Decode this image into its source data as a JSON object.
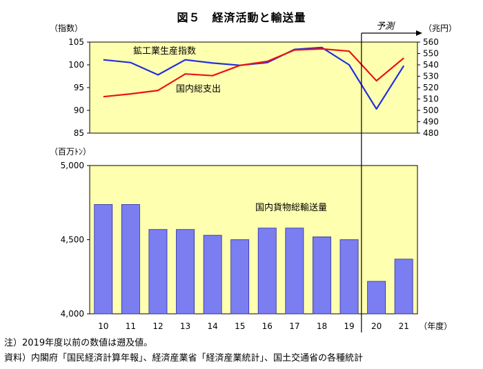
{
  "title": "図５　経済活動と輸送量",
  "forecast_label": "予測",
  "x_unit": "（年度）",
  "notes": [
    "注）2019年度以前の数値は遡及値。",
    "資料）内閣府「国民経済計算年報」、経済産業省「経済産業統計」、国土交通省の各種統計"
  ],
  "chart_data": [
    {
      "type": "line",
      "categories": [
        "10",
        "11",
        "12",
        "13",
        "14",
        "15",
        "16",
        "17",
        "18",
        "19",
        "20",
        "21"
      ],
      "left_axis_label": "（指数）",
      "right_axis_label": "（兆円）",
      "ylim_left": [
        85,
        105
      ],
      "yticks_left": [
        "105",
        "100",
        "95",
        "90",
        "85"
      ],
      "ylim_right": [
        480,
        560
      ],
      "yticks_right": [
        "560",
        "550",
        "540",
        "530",
        "520",
        "510",
        "500",
        "490",
        "480"
      ],
      "series": [
        {
          "name": "鉱工業生産指数",
          "axis": "left",
          "color": "#1f2fe0",
          "values": [
            101.1,
            100.5,
            97.8,
            101.1,
            100.4,
            99.9,
            100.5,
            103.4,
            103.8,
            100.0,
            90.3,
            99.8
          ]
        },
        {
          "name": "国内総支出",
          "axis": "right",
          "color": "#e81414",
          "values": [
            512,
            514.5,
            517.5,
            532,
            530.5,
            539.5,
            543,
            553,
            554,
            552,
            526,
            546
          ]
        }
      ],
      "forecast_start_category": "20",
      "background": "#ffffb0"
    },
    {
      "type": "bar",
      "categories": [
        "10",
        "11",
        "12",
        "13",
        "14",
        "15",
        "16",
        "17",
        "18",
        "19",
        "20",
        "21"
      ],
      "left_axis_label": "（百万ﾄﾝ）",
      "ylim": [
        4000,
        5000
      ],
      "yticks": [
        "5,000",
        "4,500",
        "4,000"
      ],
      "series": [
        {
          "name": "国内貨物総輸送量",
          "color": "#7b7ef0",
          "values": [
            4737,
            4737,
            4569,
            4569,
            4530,
            4500,
            4578,
            4578,
            4519,
            4500,
            4219,
            4369
          ]
        }
      ],
      "background": "#ffffb0"
    }
  ]
}
